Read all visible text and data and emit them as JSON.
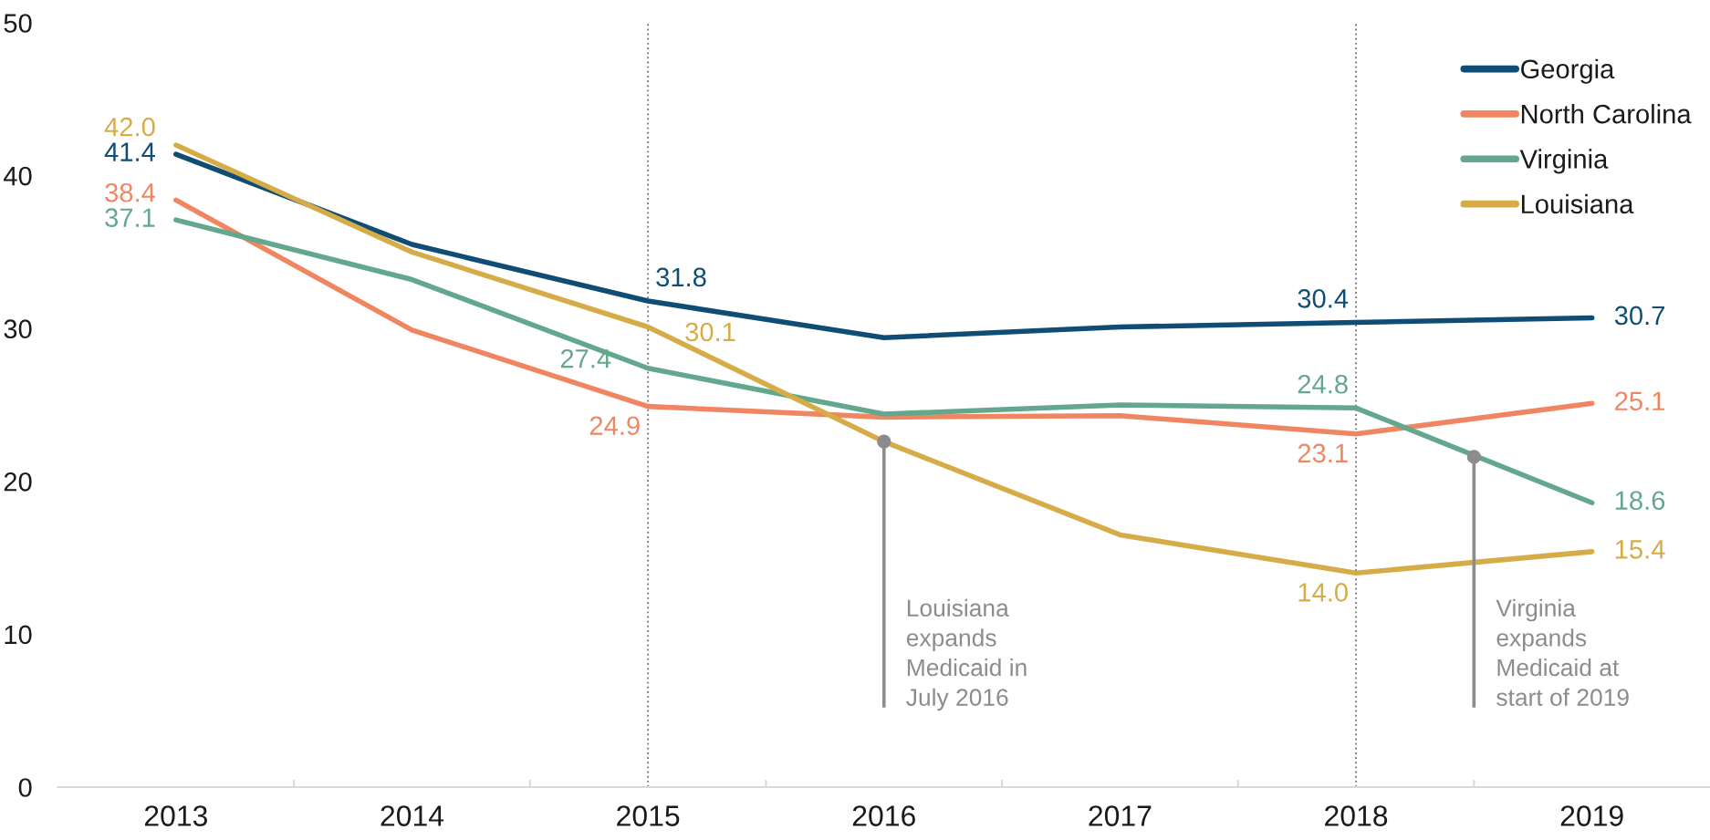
{
  "chart_data": {
    "type": "line",
    "x": [
      2013,
      2014,
      2015,
      2016,
      2017,
      2018,
      2019
    ],
    "xlim": [
      2012.5,
      2019.5
    ],
    "xticks": [
      2013,
      {
        "value": 2013.5,
        "label": null
      },
      2014,
      {
        "value": 2014.5,
        "label": null
      },
      2015,
      {
        "value": 2015.5,
        "label": null
      },
      2016,
      {
        "value": 2016.5,
        "label": null
      },
      2017,
      {
        "value": 2017.5,
        "label": null
      },
      2018,
      {
        "value": 2018.5,
        "label": null
      },
      2019
    ],
    "ylim": [
      0,
      50
    ],
    "yticks": [
      0,
      10,
      20,
      30,
      40,
      50
    ],
    "series": [
      {
        "name": "Georgia",
        "color": "#0f4d75",
        "values": [
          41.4,
          35.5,
          31.8,
          29.4,
          30.1,
          30.4,
          30.7
        ],
        "value_labels": [
          "41.4",
          null,
          "31.8",
          null,
          null,
          "30.4",
          "30.7"
        ]
      },
      {
        "name": "North Carolina",
        "color": "#f08661",
        "values": [
          38.4,
          29.9,
          24.9,
          24.2,
          24.3,
          23.1,
          25.1
        ],
        "value_labels": [
          "38.4",
          null,
          "24.9",
          null,
          null,
          "23.1",
          "25.1"
        ]
      },
      {
        "name": "Virginia",
        "color": "#63a78d",
        "values": [
          37.1,
          33.2,
          27.4,
          24.4,
          25.0,
          24.8,
          18.6
        ],
        "value_labels": [
          "37.1",
          null,
          "27.4",
          null,
          null,
          "24.8",
          "18.6"
        ]
      },
      {
        "name": "Louisiana",
        "color": "#d6ac48",
        "values": [
          42.0,
          35.0,
          30.1,
          22.6,
          16.5,
          14.0,
          15.4
        ],
        "value_labels": [
          "42.0",
          null,
          "30.1",
          null,
          null,
          "14.0",
          "15.4"
        ]
      }
    ],
    "legend": "top right",
    "ref_lines": [
      {
        "axis": "x",
        "value": 2015,
        "color": "#808080",
        "line_style": "dotted"
      },
      {
        "axis": "x",
        "value": 2018,
        "color": "#808080",
        "line_style": "dotted"
      }
    ],
    "annotations": [
      {
        "text": "Louisiana\nexpands\nMedicaid in\nJuly 2016",
        "x": 2016,
        "y": 22.6
      },
      {
        "text": "Virginia\nexpands\nMedicaid at\nstart of 2019",
        "x": 2018.5,
        "y": 21.6
      }
    ]
  }
}
